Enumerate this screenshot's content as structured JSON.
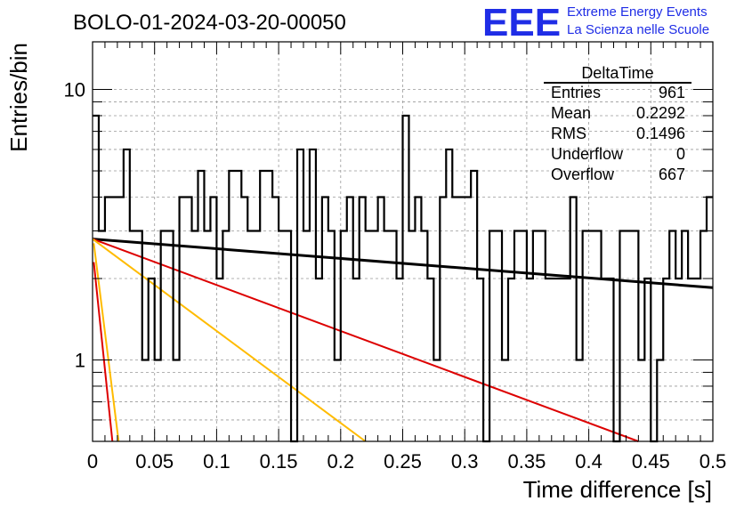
{
  "chart_data": {
    "type": "histogram",
    "title": "BOLO-01-2024-03-20-00050",
    "xlabel": "Time difference [s]",
    "ylabel": "Entries/bin",
    "xlim": [
      0,
      0.5
    ],
    "ylim": [
      0.5,
      15
    ],
    "ylog": true,
    "grid": true,
    "x_ticks": [
      "0",
      "0.05",
      "0.1",
      "0.15",
      "0.2",
      "0.25",
      "0.3",
      "0.35",
      "0.4",
      "0.45",
      "0.5"
    ],
    "y_ticks": [
      "1",
      "10"
    ],
    "bin_width": 0.005,
    "bin_values": [
      8,
      3,
      4,
      4,
      4,
      6,
      3,
      3,
      1,
      2,
      1,
      3,
      3,
      1,
      4,
      4,
      3,
      5,
      3,
      4,
      2,
      3,
      5,
      5,
      4,
      3,
      3,
      5,
      5,
      4,
      3,
      3,
      0,
      6,
      3,
      6,
      2,
      4,
      3,
      1,
      3,
      4,
      2,
      4,
      3,
      3,
      4,
      3,
      3,
      2,
      8,
      3,
      4,
      3,
      2,
      1,
      4,
      6,
      4,
      4,
      4,
      5,
      2,
      0,
      3,
      3,
      1,
      2,
      3,
      3,
      2,
      3,
      3,
      2,
      2,
      2,
      2,
      4,
      1,
      3,
      3,
      3,
      2,
      2,
      0,
      3,
      3,
      3,
      1,
      2,
      0,
      1,
      2,
      3,
      2,
      3,
      2,
      2,
      3,
      4
    ],
    "fit_lines": [
      {
        "color": "#000000",
        "x": [
          0,
          0.5
        ],
        "y": [
          2.8,
          1.85
        ]
      },
      {
        "color": "#dd0000",
        "x": [
          0,
          0.44
        ],
        "y": [
          2.8,
          0.5
        ]
      },
      {
        "color": "#ffbb00",
        "x": [
          0,
          0.22
        ],
        "y": [
          2.8,
          0.5
        ]
      },
      {
        "color": "#ffbb00",
        "x": [
          0.001,
          0.021
        ],
        "y": [
          2.7,
          0.5
        ]
      },
      {
        "color": "#dd0000",
        "x": [
          0.001,
          0.016
        ],
        "y": [
          2.3,
          0.5
        ]
      }
    ],
    "stats": {
      "name": "DeltaTime",
      "rows": [
        {
          "label": "Entries",
          "value": "961"
        },
        {
          "label": "Mean",
          "value": "0.2292"
        },
        {
          "label": "RMS",
          "value": "0.1496"
        },
        {
          "label": "Underflow",
          "value": "0"
        },
        {
          "label": "Overflow",
          "value": "667"
        }
      ]
    }
  },
  "logo": {
    "mark": "EEE",
    "line1": "Extreme Energy Events",
    "line2": "La Scienza nelle Scuole",
    "color": "#1f2de6"
  }
}
